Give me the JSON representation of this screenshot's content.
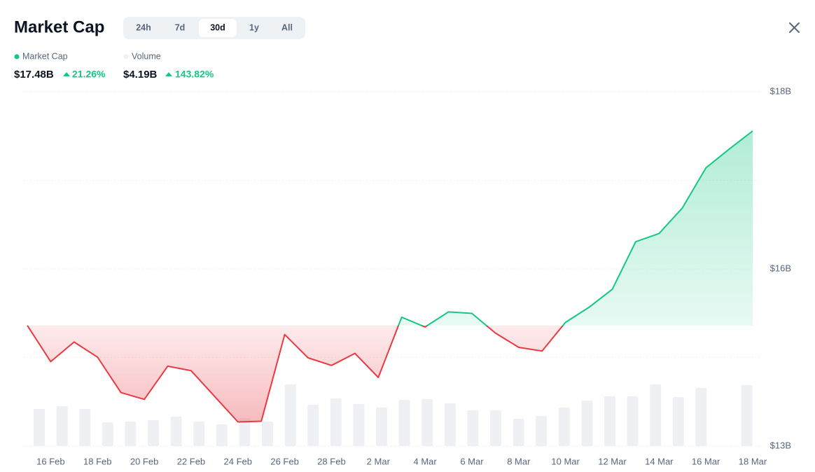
{
  "header": {
    "title": "Market Cap",
    "tabs": [
      {
        "label": "24h"
      },
      {
        "label": "7d"
      },
      {
        "label": "30d",
        "active": true
      },
      {
        "label": "1y"
      },
      {
        "label": "All"
      }
    ]
  },
  "summary": [
    {
      "value": "$17.48B",
      "change": "21.26%"
    },
    {
      "value": "$4.19B",
      "change": "143.82%"
    }
  ],
  "chart_data": {
    "type": "line",
    "categories": [
      null,
      "16 Feb",
      null,
      "18 Feb",
      null,
      "20 Feb",
      null,
      "22 Feb",
      null,
      "24 Feb",
      null,
      "26 Feb",
      null,
      "28 Feb",
      null,
      "2 Mar",
      null,
      "4 Mar",
      null,
      "6 Mar",
      null,
      "8 Mar",
      null,
      "10 Mar",
      null,
      "12 Mar",
      null,
      "14 Mar",
      null,
      "16 Mar",
      null,
      "18 Mar"
    ],
    "series": [
      {
        "name": "Market Cap",
        "color": "#16c784",
        "negative_color": "#ea3943",
        "values": [
          14.9,
          14.42,
          14.68,
          14.48,
          14.01,
          13.92,
          14.36,
          14.3,
          13.96,
          13.62,
          13.63,
          14.78,
          14.47,
          14.37,
          14.53,
          14.21,
          15.01,
          14.88,
          15.08,
          15.06,
          14.8,
          14.61,
          14.56,
          14.94,
          15.14,
          15.38,
          16.01,
          16.12,
          16.46,
          16.99,
          17.24,
          17.48
        ]
      },
      {
        "name": "Volume",
        "color": "#eef0f3",
        "axis": "y2",
        "type": "bar",
        "values": [
          2.55,
          2.74,
          2.55,
          1.63,
          1.68,
          1.78,
          2.02,
          1.68,
          1.49,
          1.92,
          1.68,
          4.23,
          2.84,
          3.27,
          2.88,
          2.64,
          3.17,
          3.22,
          2.93,
          2.45,
          2.45,
          1.87,
          2.07,
          2.64,
          3.12,
          3.41,
          3.41,
          4.23,
          3.36,
          3.99,
          null,
          4.19
        ]
      }
    ],
    "ylim": [
      13.3,
      18
    ],
    "yticks": [
      {
        "value": 13.3,
        "label": "$13B"
      },
      {
        "value": 15.65,
        "label": "$16B"
      },
      {
        "value": 18,
        "label": "$18B"
      }
    ],
    "y2lim": [
      0,
      24.3
    ],
    "grid": true
  }
}
